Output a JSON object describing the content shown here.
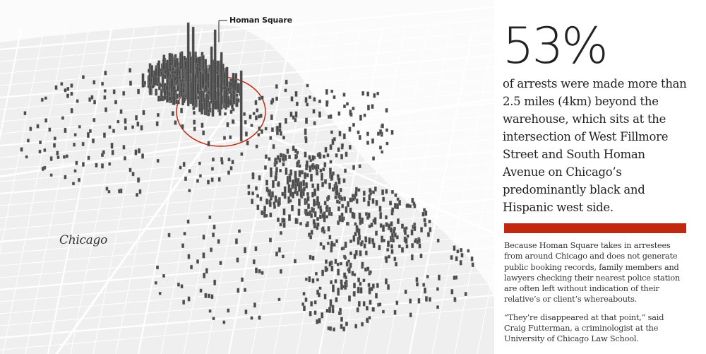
{
  "map": {
    "city_label": "Chicago",
    "marker_label": "Homan Square",
    "colors": {
      "background": "#f1f1f1",
      "lake": "#fbfbfb",
      "roads": "#ffffff",
      "bars": "#4a4a4a",
      "circle": "#c1280f"
    }
  },
  "panel": {
    "stat": "53%",
    "lead": "of arrests were made more than 2.5 miles (4km) beyond the warehouse, which sits at the intersection of West Fillmore Street and South Homan Avenue on Chicago’s predominantly black and Hispanic west side.",
    "rule_color": "#c1280f",
    "paragraph_1": "Because Homan Square takes in arrestees from around Chicago and does not generate public booking records, family members and lawyers checking their nearest police station are often left without indication of their relative’s or client’s whereabouts.",
    "paragraph_2": "“They’re disappeared at that point,” said Craig Futterman, a criminologist at the University of Chicago Law School."
  }
}
